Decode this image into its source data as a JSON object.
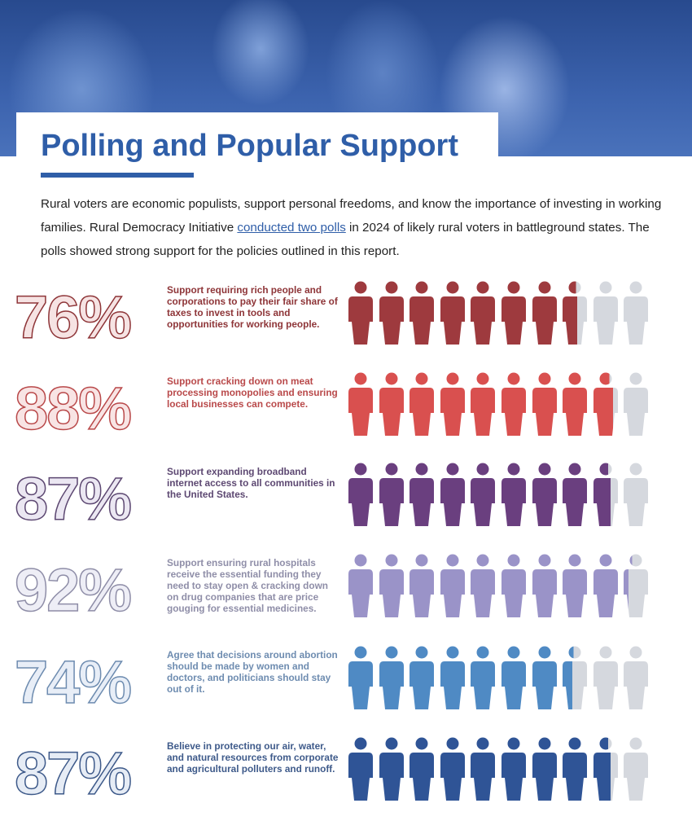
{
  "header": {
    "title": "Polling and Popular Support"
  },
  "intro": {
    "before": "Rural voters are economic populists, support personal freedoms, and know the importance of investing in working families. Rural Democracy Initiative ",
    "link": "conducted two polls",
    "after": " in 2024 of likely rural voters in battleground states. The polls showed strong support for the policies outlined in this report."
  },
  "colors": {
    "accent": "#2f5ea8",
    "empty_icon": "#d5d8de"
  },
  "chart_data": {
    "type": "bar",
    "icons_per_row": 10,
    "icon": "person-icon",
    "categories": [
      "Support requiring rich people and corporations to pay their fair share of taxes to invest in tools and opportunities for working people.",
      "Support cracking down on meat processing monopolies and ensuring local businesses can compete.",
      "Support expanding broadband internet access to all communities in the United States.",
      "Support ensuring rural hospitals receive the essential funding they need to stay open & cracking down on drug companies that are price gouging for essential medicines.",
      "Agree that decisions around abortion should be made by women and doctors, and politicians should stay out of it.",
      "Believe in protecting our air, water, and natural resources from corporate and agricultural polluters and runoff."
    ],
    "values": [
      76,
      88,
      87,
      92,
      74,
      87
    ],
    "labels": [
      "76%",
      "88%",
      "87%",
      "92%",
      "74%",
      "87%"
    ],
    "ylim": [
      0,
      100
    ],
    "colors": [
      "#9e3a3e",
      "#d9504f",
      "#6a3f7f",
      "#9a93c8",
      "#4f8ac4",
      "#2f5496"
    ],
    "label_fills": [
      "#f6e3e3",
      "#f8e4e4",
      "#ebe7f2",
      "#eeeef6",
      "#e8eef7",
      "#e6ecf5"
    ],
    "text_colors": [
      "#8e3538",
      "#b9494a",
      "#5d4872",
      "#8f8ea8",
      "#6e8cb0",
      "#3e5a8a"
    ]
  }
}
